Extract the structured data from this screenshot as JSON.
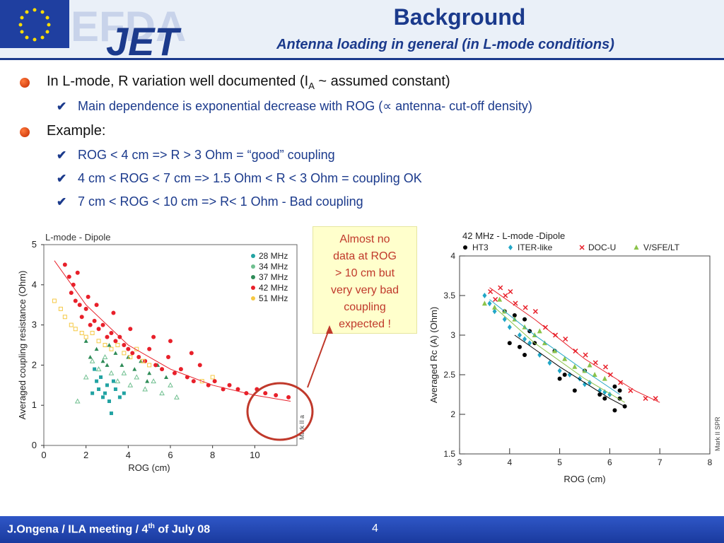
{
  "slide": {
    "title": "Background",
    "subtitle": "Antenna loading in general (in L-mode conditions)",
    "logo": "EFDA JET",
    "bullets": [
      {
        "text": "In L-mode, R variation well documented (I",
        "sub": "A",
        "tail": " ~ assumed constant)"
      },
      {
        "text": "Example:"
      }
    ],
    "subpoints": [
      "Main dependence is exponential decrease with ROG (∝ antenna- cut-off density)",
      "ROG < 4 cm => R > 3 Ohm = “good” coupling",
      "4 cm < ROG < 7 cm => 1.5 Ohm < R < 3 Ohm =  coupling OK",
      "7 cm < ROG < 10 cm => R< 1 Ohm - Bad coupling"
    ],
    "callout": [
      "Almost no",
      "data at ROG",
      "> 10 cm but",
      "very very bad",
      "coupling",
      "expected  !"
    ],
    "footer": "J.Ongena  / ILA meeting / 4",
    "footer_sup": "th",
    "footer_tail": " of July 08",
    "page": "4"
  },
  "colors": {
    "title": "#1b3a8c",
    "accent": "#c0392b",
    "footer": "#2f57c7",
    "series_28": "#22a3a3",
    "series_34": "#6fbf8f",
    "series_37": "#2e8b57",
    "series_42": "#e8202a",
    "series_51": "#f5c842",
    "ht3": "#000000",
    "iter": "#22a7c7",
    "docu": "#e8202a",
    "vsfe": "#8bc34a"
  },
  "chart_data": [
    {
      "type": "scatter",
      "title": "L-mode - Dipole",
      "xlabel": "ROG (cm)",
      "ylabel": "Averaged coupling resistance (Ohm)",
      "xlim": [
        0,
        12
      ],
      "ylim": [
        0,
        5
      ],
      "xticks": [
        "0",
        "2",
        "4",
        "6",
        "8",
        "10"
      ],
      "yticks": [
        "0",
        "1",
        "2",
        "3",
        "4",
        "5"
      ],
      "side_label": "Mark II a",
      "legend": [
        "28 MHz",
        "34 MHz",
        "37 MHz",
        "42 MHz",
        "51 MHz"
      ],
      "legend_position": "top-right",
      "series": [
        {
          "name": "28 MHz",
          "points": [
            [
              2.3,
              1.3
            ],
            [
              2.5,
              1.6
            ],
            [
              2.6,
              1.4
            ],
            [
              2.8,
              1.2
            ],
            [
              3.0,
              1.5
            ],
            [
              3.2,
              0.8
            ],
            [
              3.4,
              1.4
            ],
            [
              3.6,
              1.2
            ],
            [
              2.4,
              1.9
            ],
            [
              2.7,
              1.7
            ],
            [
              3.1,
              1.1
            ],
            [
              3.3,
              1.6
            ],
            [
              2.9,
              1.3
            ],
            [
              3.8,
              1.3
            ]
          ]
        },
        {
          "name": "34 MHz",
          "points": [
            [
              1.6,
              1.1
            ],
            [
              2.0,
              1.7
            ],
            [
              2.3,
              2.1
            ],
            [
              2.6,
              1.9
            ],
            [
              2.9,
              2.2
            ],
            [
              3.2,
              1.8
            ],
            [
              3.5,
              1.6
            ],
            [
              3.8,
              1.8
            ],
            [
              4.1,
              1.5
            ],
            [
              4.4,
              1.7
            ],
            [
              4.8,
              1.4
            ],
            [
              5.2,
              1.6
            ],
            [
              5.6,
              1.3
            ],
            [
              6.0,
              1.5
            ],
            [
              6.3,
              1.2
            ]
          ]
        },
        {
          "name": "37 MHz",
          "points": [
            [
              2.2,
              2.2
            ],
            [
              2.5,
              2.4
            ],
            [
              2.8,
              2.1
            ],
            [
              3.1,
              2.5
            ],
            [
              3.4,
              2.3
            ],
            [
              3.7,
              2.0
            ],
            [
              4.0,
              2.2
            ],
            [
              4.3,
              1.9
            ],
            [
              4.6,
              2.1
            ],
            [
              5.0,
              1.8
            ],
            [
              5.4,
              2.0
            ],
            [
              5.8,
              1.7
            ],
            [
              2.0,
              2.6
            ],
            [
              3.0,
              2.0
            ],
            [
              4.9,
              1.6
            ]
          ]
        },
        {
          "name": "42 MHz",
          "points": [
            [
              1.0,
              4.5
            ],
            [
              1.2,
              4.2
            ],
            [
              1.3,
              3.8
            ],
            [
              1.5,
              3.6
            ],
            [
              1.4,
              4.0
            ],
            [
              1.7,
              3.5
            ],
            [
              1.8,
              3.2
            ],
            [
              2.0,
              3.4
            ],
            [
              2.2,
              3.0
            ],
            [
              2.4,
              3.1
            ],
            [
              2.6,
              2.9
            ],
            [
              2.8,
              3.0
            ],
            [
              3.0,
              2.7
            ],
            [
              3.2,
              2.8
            ],
            [
              3.4,
              2.6
            ],
            [
              3.6,
              2.7
            ],
            [
              3.8,
              2.5
            ],
            [
              4.0,
              2.4
            ],
            [
              4.2,
              2.3
            ],
            [
              4.5,
              2.2
            ],
            [
              4.8,
              2.1
            ],
            [
              5.0,
              2.4
            ],
            [
              5.3,
              2.0
            ],
            [
              5.6,
              1.9
            ],
            [
              5.9,
              2.2
            ],
            [
              6.2,
              1.8
            ],
            [
              6.5,
              1.9
            ],
            [
              6.8,
              1.7
            ],
            [
              7.1,
              1.6
            ],
            [
              7.4,
              2.0
            ],
            [
              7.8,
              1.5
            ],
            [
              8.1,
              1.6
            ],
            [
              8.5,
              1.4
            ],
            [
              8.8,
              1.5
            ],
            [
              9.2,
              1.4
            ],
            [
              9.6,
              1.3
            ],
            [
              10.1,
              1.4
            ],
            [
              10.5,
              1.3
            ],
            [
              11.0,
              1.25
            ],
            [
              11.6,
              1.2
            ],
            [
              1.6,
              4.3
            ],
            [
              2.1,
              3.7
            ],
            [
              2.5,
              3.5
            ],
            [
              3.3,
              3.3
            ],
            [
              4.1,
              2.9
            ],
            [
              5.2,
              2.7
            ],
            [
              6.0,
              2.6
            ],
            [
              7.0,
              2.3
            ]
          ]
        },
        {
          "name": "51 MHz",
          "points": [
            [
              0.5,
              3.6
            ],
            [
              0.8,
              3.4
            ],
            [
              1.0,
              3.2
            ],
            [
              1.3,
              3.0
            ],
            [
              1.5,
              2.9
            ],
            [
              1.8,
              2.8
            ],
            [
              2.0,
              2.7
            ],
            [
              2.3,
              2.8
            ],
            [
              2.6,
              2.6
            ],
            [
              2.9,
              2.5
            ],
            [
              3.2,
              2.4
            ],
            [
              3.5,
              2.5
            ],
            [
              3.8,
              2.3
            ],
            [
              4.1,
              2.2
            ],
            [
              4.4,
              2.4
            ],
            [
              4.7,
              2.1
            ],
            [
              5.0,
              2.0
            ],
            [
              7.5,
              1.6
            ],
            [
              8.0,
              1.7
            ]
          ]
        }
      ],
      "fit": [
        [
          0.5,
          4.6
        ],
        [
          2,
          3.5
        ],
        [
          4,
          2.5
        ],
        [
          6,
          1.9
        ],
        [
          8,
          1.5
        ],
        [
          10,
          1.25
        ],
        [
          11.7,
          1.1
        ]
      ]
    },
    {
      "type": "scatter",
      "title": "42 MHz - L-mode -Dipole",
      "xlabel": "ROG (cm)",
      "ylabel": "Averaged Rc (A) (Ohm)",
      "xlim": [
        3,
        8
      ],
      "ylim": [
        1.5,
        4
      ],
      "xticks": [
        "3",
        "4",
        "5",
        "6",
        "7",
        "8"
      ],
      "yticks": [
        "1.5",
        "2",
        "2.5",
        "3",
        "3.5",
        "4"
      ],
      "side_label": "Mark II SPR",
      "legend": [
        "HT3",
        "ITER-like",
        "DOC-U",
        "V/SFE/LT"
      ],
      "legend_position": "top",
      "series": [
        {
          "name": "HT3",
          "points": [
            [
              3.9,
              3.3
            ],
            [
              4.1,
              3.25
            ],
            [
              4.0,
              2.9
            ],
            [
              4.2,
              2.85
            ],
            [
              4.3,
              2.75
            ],
            [
              4.4,
              3.05
            ],
            [
              4.5,
              2.9
            ],
            [
              5.0,
              2.45
            ],
            [
              5.1,
              2.5
            ],
            [
              5.3,
              2.3
            ],
            [
              5.5,
              2.55
            ],
            [
              5.8,
              2.25
            ],
            [
              5.9,
              2.2
            ],
            [
              6.1,
              2.35
            ],
            [
              6.2,
              2.2
            ],
            [
              6.3,
              2.1
            ],
            [
              6.1,
              2.05
            ],
            [
              6.2,
              2.3
            ],
            [
              4.3,
              3.2
            ],
            [
              4.9,
              2.8
            ]
          ]
        },
        {
          "name": "ITER-like",
          "points": [
            [
              3.5,
              3.5
            ],
            [
              3.7,
              3.3
            ],
            [
              3.9,
              3.2
            ],
            [
              4.0,
              3.1
            ],
            [
              4.2,
              3.0
            ],
            [
              4.4,
              2.9
            ],
            [
              4.6,
              2.75
            ],
            [
              4.8,
              2.65
            ],
            [
              5.0,
              2.55
            ],
            [
              5.2,
              2.5
            ],
            [
              5.4,
              2.45
            ],
            [
              5.6,
              2.4
            ],
            [
              5.8,
              2.3
            ],
            [
              6.0,
              2.25
            ],
            [
              3.6,
              3.4
            ],
            [
              4.3,
              2.95
            ],
            [
              5.5,
              2.38
            ],
            [
              5.9,
              2.28
            ]
          ]
        },
        {
          "name": "DOC-U",
          "points": [
            [
              3.6,
              3.55
            ],
            [
              3.8,
              3.6
            ],
            [
              3.9,
              3.5
            ],
            [
              4.1,
              3.4
            ],
            [
              4.3,
              3.35
            ],
            [
              4.5,
              3.3
            ],
            [
              4.7,
              3.1
            ],
            [
              4.9,
              3.0
            ],
            [
              5.1,
              2.95
            ],
            [
              5.3,
              2.8
            ],
            [
              5.5,
              2.75
            ],
            [
              5.7,
              2.65
            ],
            [
              5.9,
              2.6
            ],
            [
              6.0,
              2.5
            ],
            [
              6.2,
              2.4
            ],
            [
              6.4,
              2.3
            ],
            [
              6.7,
              2.2
            ],
            [
              6.9,
              2.2
            ],
            [
              3.7,
              3.45
            ],
            [
              4.0,
              3.55
            ]
          ]
        },
        {
          "name": "V/SFE/LT",
          "points": [
            [
              3.5,
              3.4
            ],
            [
              3.7,
              3.35
            ],
            [
              3.9,
              3.3
            ],
            [
              4.1,
              3.2
            ],
            [
              4.3,
              3.1
            ],
            [
              4.5,
              3.0
            ],
            [
              4.7,
              2.9
            ],
            [
              4.9,
              2.8
            ],
            [
              5.1,
              2.7
            ],
            [
              5.3,
              2.6
            ],
            [
              5.5,
              2.55
            ],
            [
              5.7,
              2.5
            ],
            [
              5.9,
              2.45
            ],
            [
              3.8,
              3.45
            ],
            [
              4.6,
              3.05
            ],
            [
              5.6,
              2.62
            ]
          ]
        }
      ],
      "fits": [
        [
          [
            3.6,
            3.6
          ],
          [
            4.5,
            3.2
          ],
          [
            5.5,
            2.7
          ],
          [
            6.5,
            2.3
          ],
          [
            7.0,
            2.15
          ]
        ],
        [
          [
            3.6,
            3.45
          ],
          [
            4.5,
            3.0
          ],
          [
            5.5,
            2.55
          ],
          [
            6.2,
            2.25
          ]
        ],
        [
          [
            3.7,
            3.35
          ],
          [
            4.5,
            2.9
          ],
          [
            5.5,
            2.45
          ],
          [
            6.3,
            2.15
          ]
        ],
        [
          [
            4.1,
            3.0
          ],
          [
            5.0,
            2.6
          ],
          [
            6.0,
            2.2
          ],
          [
            6.3,
            2.1
          ]
        ]
      ]
    }
  ]
}
